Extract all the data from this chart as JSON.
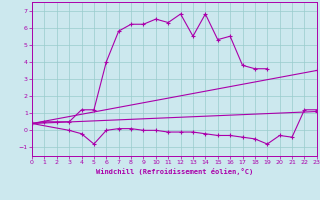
{
  "xlabel": "Windchill (Refroidissement éolien,°C)",
  "background_color": "#cce8ee",
  "line_color": "#aa00aa",
  "grid_color": "#99cccc",
  "xmin": 0,
  "xmax": 23,
  "ymin": -1.5,
  "ymax": 7.5,
  "yticks": [
    -1,
    0,
    1,
    2,
    3,
    4,
    5,
    6,
    7
  ],
  "xticks": [
    0,
    1,
    2,
    3,
    4,
    5,
    6,
    7,
    8,
    9,
    10,
    11,
    12,
    13,
    14,
    15,
    16,
    17,
    18,
    19,
    20,
    21,
    22,
    23
  ],
  "line1_x": [
    0,
    1,
    2,
    3,
    4,
    5,
    6,
    7,
    8,
    9,
    10,
    11,
    12,
    13,
    14,
    15,
    16,
    17,
    18,
    19
  ],
  "line1_y": [
    0.4,
    0.5,
    0.5,
    0.5,
    1.2,
    1.2,
    4.0,
    5.8,
    6.2,
    6.2,
    6.5,
    6.3,
    6.8,
    5.5,
    6.8,
    5.3,
    5.5,
    3.8,
    3.6,
    3.6
  ],
  "line2_x": [
    0,
    3,
    4,
    5,
    6,
    7,
    8,
    9,
    10,
    11,
    12,
    13,
    14,
    15,
    16,
    17,
    18,
    19,
    20,
    21,
    22,
    23
  ],
  "line2_y": [
    0.4,
    0.0,
    -0.2,
    -0.8,
    0.0,
    0.1,
    0.1,
    0.0,
    0.0,
    -0.1,
    -0.1,
    -0.1,
    -0.2,
    -0.3,
    -0.3,
    -0.4,
    -0.5,
    -0.8,
    -0.3,
    -0.4,
    1.2,
    1.2
  ],
  "line3_x": [
    0,
    23
  ],
  "line3_y": [
    0.4,
    3.5
  ],
  "line4_x": [
    0,
    23
  ],
  "line4_y": [
    0.4,
    1.1
  ]
}
